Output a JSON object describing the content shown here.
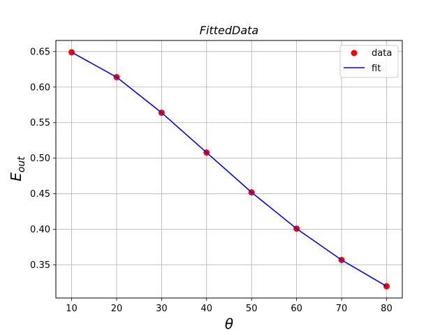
{
  "chart_data": {
    "type": "scatter",
    "title": "FittedData",
    "xlabel": "θ",
    "ylabel": "E",
    "ylabel_subscript": "out",
    "x": [
      10,
      20,
      30,
      40,
      50,
      60,
      70,
      80
    ],
    "series": [
      {
        "name": "data",
        "kind": "scatter",
        "color": "#ff0000",
        "values": [
          0.649,
          0.614,
          0.564,
          0.508,
          0.452,
          0.401,
          0.357,
          0.32
        ]
      },
      {
        "name": "fit",
        "kind": "line",
        "color": "#0000ff",
        "values": [
          0.649,
          0.614,
          0.564,
          0.508,
          0.452,
          0.401,
          0.357,
          0.32
        ]
      }
    ],
    "xlim": [
      6.5,
      83.5
    ],
    "ylim": [
      0.3035,
      0.6655
    ],
    "xticks": [
      10,
      20,
      30,
      40,
      50,
      60,
      70,
      80
    ],
    "yticks": [
      0.35,
      0.4,
      0.45,
      0.5,
      0.55,
      0.6,
      0.65
    ],
    "xtick_labels": [
      "10",
      "20",
      "30",
      "40",
      "50",
      "60",
      "70",
      "80"
    ],
    "ytick_labels": [
      "0.35",
      "0.40",
      "0.45",
      "0.50",
      "0.55",
      "0.60",
      "0.65"
    ],
    "grid": true,
    "legend_position": "top-right"
  }
}
